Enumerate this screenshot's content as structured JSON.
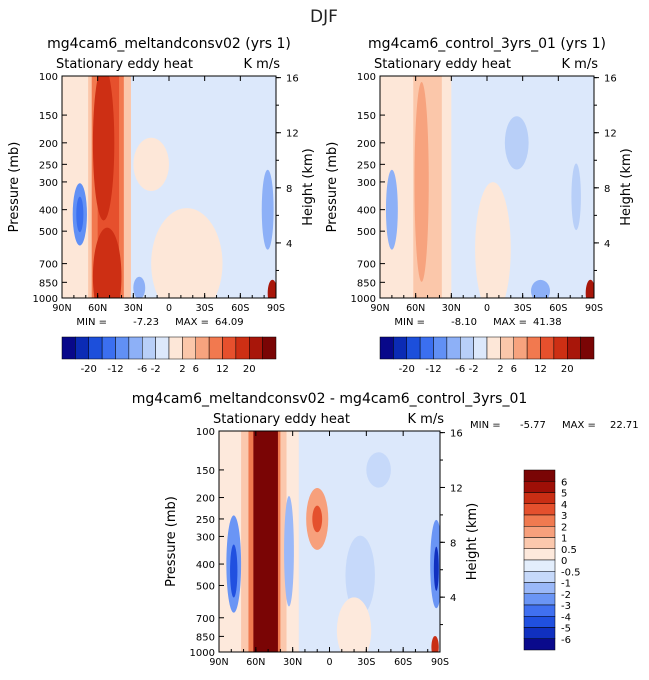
{
  "main_title": "DJF",
  "chart_data": [
    {
      "type": "heatmap",
      "id": "p1",
      "title": "mg4cam6_meltandconsv02 (yrs 1)",
      "left_string": "Stationary eddy heat",
      "right_string": "K m/s",
      "xlabel": "",
      "ylabel": "Pressure (mb)",
      "y2label": "Height (km)",
      "xlim": [
        90,
        -90
      ],
      "x_ticks": [
        "90N",
        "60N",
        "30N",
        "0",
        "30S",
        "60S",
        "90S"
      ],
      "y_ticks": [
        "100",
        "150",
        "200",
        "250",
        "300",
        "400",
        "500",
        "700",
        "850",
        "1000"
      ],
      "y2_ticks": [
        "16",
        "12",
        "8",
        "4"
      ],
      "min_label": "MIN =",
      "min_value": "-7.23",
      "max_label": "MAX =",
      "max_value": "64.09",
      "colorbar_ticks": [
        "-20",
        "-12",
        "-6",
        "-2",
        "2",
        "6",
        "12",
        "20"
      ],
      "features": [
        {
          "lat": 52,
          "p": 500,
          "value": 40,
          "note": "strong positive band 60N-40N, full depth"
        },
        {
          "lat": 75,
          "p": 400,
          "value": -5,
          "note": "negative cell near 75N"
        },
        {
          "lat": 15,
          "p": 200,
          "value": 1,
          "note": "weak positive upper tropics"
        },
        {
          "lat": -83,
          "p": 400,
          "value": -4,
          "note": "negative cell near 85S"
        },
        {
          "lat": -87,
          "p": 950,
          "value": 15,
          "note": "positive near surface at 90S"
        }
      ]
    },
    {
      "type": "heatmap",
      "id": "p2",
      "title": "mg4cam6_control_3yrs_01 (yrs 1)",
      "left_string": "Stationary eddy heat",
      "right_string": "K m/s",
      "xlabel": "",
      "ylabel": "Pressure (mb)",
      "y2label": "Height (km)",
      "xlim": [
        90,
        -90
      ],
      "x_ticks": [
        "90N",
        "60N",
        "30N",
        "0",
        "30S",
        "60S",
        "90S"
      ],
      "y_ticks": [
        "100",
        "150",
        "200",
        "250",
        "300",
        "400",
        "500",
        "700",
        "850",
        "1000"
      ],
      "y2_ticks": [
        "16",
        "12",
        "8",
        "4"
      ],
      "min_label": "MIN =",
      "min_value": "-8.10",
      "max_label": "MAX =",
      "max_value": "41.38",
      "colorbar_ticks": [
        "-20",
        "-12",
        "-6",
        "-2",
        "2",
        "6",
        "12",
        "20"
      ],
      "features": [
        {
          "lat": 55,
          "p": 300,
          "value": 3,
          "note": "weak positive band 60N-40N"
        },
        {
          "lat": 80,
          "p": 400,
          "value": -3,
          "note": "negative cell near 80N"
        },
        {
          "lat": -25,
          "p": 200,
          "value": -3,
          "note": "negative cell upper SH"
        },
        {
          "lat": -87,
          "p": 950,
          "value": 15,
          "note": "positive near surface at 90S"
        }
      ]
    },
    {
      "type": "heatmap",
      "id": "p3",
      "title": "mg4cam6_meltandconsv02 - mg4cam6_control_3yrs_01",
      "left_string": "Stationary eddy heat",
      "right_string": "K m/s",
      "xlabel": "",
      "ylabel": "Pressure (mb)",
      "y2label": "Height (km)",
      "xlim": [
        90,
        -90
      ],
      "x_ticks": [
        "90N",
        "60N",
        "30N",
        "0",
        "30S",
        "60S",
        "90S"
      ],
      "y_ticks": [
        "100",
        "150",
        "200",
        "250",
        "300",
        "400",
        "500",
        "700",
        "850",
        "1000"
      ],
      "y2_ticks": [
        "16",
        "12",
        "8",
        "4"
      ],
      "min_label": "MIN =",
      "min_value": "-5.77",
      "max_label": "MAX =",
      "max_value": "22.71",
      "colorbar_ticks": [
        "6",
        "5",
        "4",
        "3",
        "2",
        "1",
        "0.5",
        "0",
        "-0.5",
        "-1",
        "-2",
        "-3",
        "-4",
        "-5",
        "-6"
      ],
      "features": [
        {
          "lat": 52,
          "p": 500,
          "value": 20,
          "note": "strong positive band 60N-40N"
        },
        {
          "lat": 75,
          "p": 400,
          "value": -4,
          "note": "negative cell near 75N"
        },
        {
          "lat": 10,
          "p": 250,
          "value": 3,
          "note": "positive cell near equator upper"
        },
        {
          "lat": -87,
          "p": 400,
          "value": -5,
          "note": "negative cell near 90S"
        }
      ]
    }
  ],
  "colors": {
    "palette_16": [
      "#08088a",
      "#0b2bb5",
      "#1c4fdb",
      "#3b6ff0",
      "#6190f5",
      "#8db0f7",
      "#b8cff8",
      "#dce8fb",
      "#fde7d8",
      "#fbc7aa",
      "#f7a37e",
      "#f2794f",
      "#e6502d",
      "#cd2f14",
      "#a8160a",
      "#7a0505"
    ],
    "palette_diff": [
      "#0a0a8c",
      "#1030c0",
      "#2050e0",
      "#4070f0",
      "#6a95f5",
      "#9ab8f8",
      "#c6d9fa",
      "#e3eefc",
      "#fde9dc",
      "#fbc8ad",
      "#f7a07c",
      "#f07a50",
      "#e4502d",
      "#c92e14",
      "#9e0f07",
      "#7a0505"
    ],
    "background_light_blue": "#dce8fb",
    "background_light_red": "#fde7d8"
  }
}
